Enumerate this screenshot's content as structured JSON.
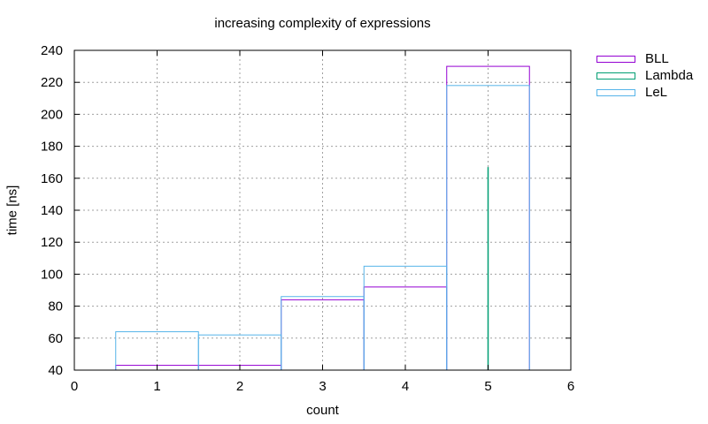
{
  "chart_data": {
    "type": "bar",
    "title": "increasing complexity of expressions",
    "xlabel": "count",
    "ylabel": "time [ns]",
    "xlim": [
      0,
      6
    ],
    "ylim": [
      40,
      240
    ],
    "xticks": [
      0,
      1,
      2,
      3,
      4,
      5,
      6
    ],
    "yticks": [
      40,
      60,
      80,
      100,
      120,
      140,
      160,
      180,
      200,
      220,
      240
    ],
    "grid": true,
    "legend_position": "outside-right-top",
    "series": [
      {
        "name": "BLL",
        "color": "#9400d3",
        "style": "boxes",
        "x": [
          1,
          2,
          3,
          4,
          5
        ],
        "values": [
          43,
          43,
          84,
          92,
          230
        ]
      },
      {
        "name": "Lambda",
        "color": "#009e73",
        "style": "impulses",
        "x": [
          5
        ],
        "values": [
          167
        ]
      },
      {
        "name": "LeL",
        "color": "#56b4e9",
        "style": "boxes",
        "x": [
          1,
          2,
          3,
          4,
          5
        ],
        "values": [
          64,
          62,
          86,
          105,
          218
        ]
      }
    ]
  }
}
